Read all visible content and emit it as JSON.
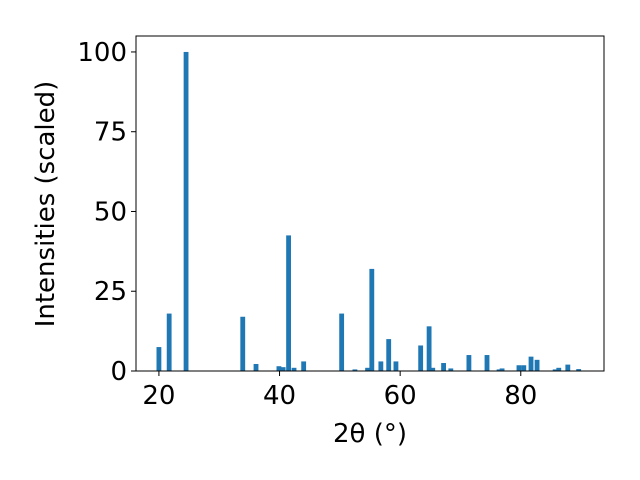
{
  "chart_data": {
    "type": "bar",
    "xlabel": "2θ (°)",
    "ylabel": "Intensities (scaled)",
    "x": [
      20.0,
      21.7,
      24.5,
      33.9,
      36.1,
      39.9,
      40.6,
      41.5,
      42.4,
      44.0,
      50.3,
      52.5,
      54.6,
      55.3,
      56.8,
      58.1,
      59.3,
      63.4,
      64.8,
      65.4,
      67.2,
      68.4,
      71.4,
      74.4,
      76.4,
      76.9,
      79.7,
      80.5,
      81.7,
      82.7,
      85.7,
      86.3,
      87.8,
      89.6
    ],
    "values": [
      7.5,
      18,
      100,
      17,
      2.2,
      1.5,
      1.2,
      42.5,
      1,
      3,
      18,
      0.5,
      1,
      32,
      3,
      10,
      3,
      8,
      14,
      1,
      2.5,
      0.8,
      5,
      5,
      0.5,
      0.8,
      1.8,
      1.8,
      4.5,
      3.5,
      0.5,
      1,
      2,
      0.6
    ],
    "bar_width": 0.8,
    "color": "#1f77b4",
    "xlim": [
      16.2,
      93.8
    ],
    "xticks": [
      20,
      40,
      60,
      80
    ],
    "ylim": [
      0,
      105
    ],
    "yticks": [
      0,
      25,
      50,
      75,
      100
    ]
  }
}
